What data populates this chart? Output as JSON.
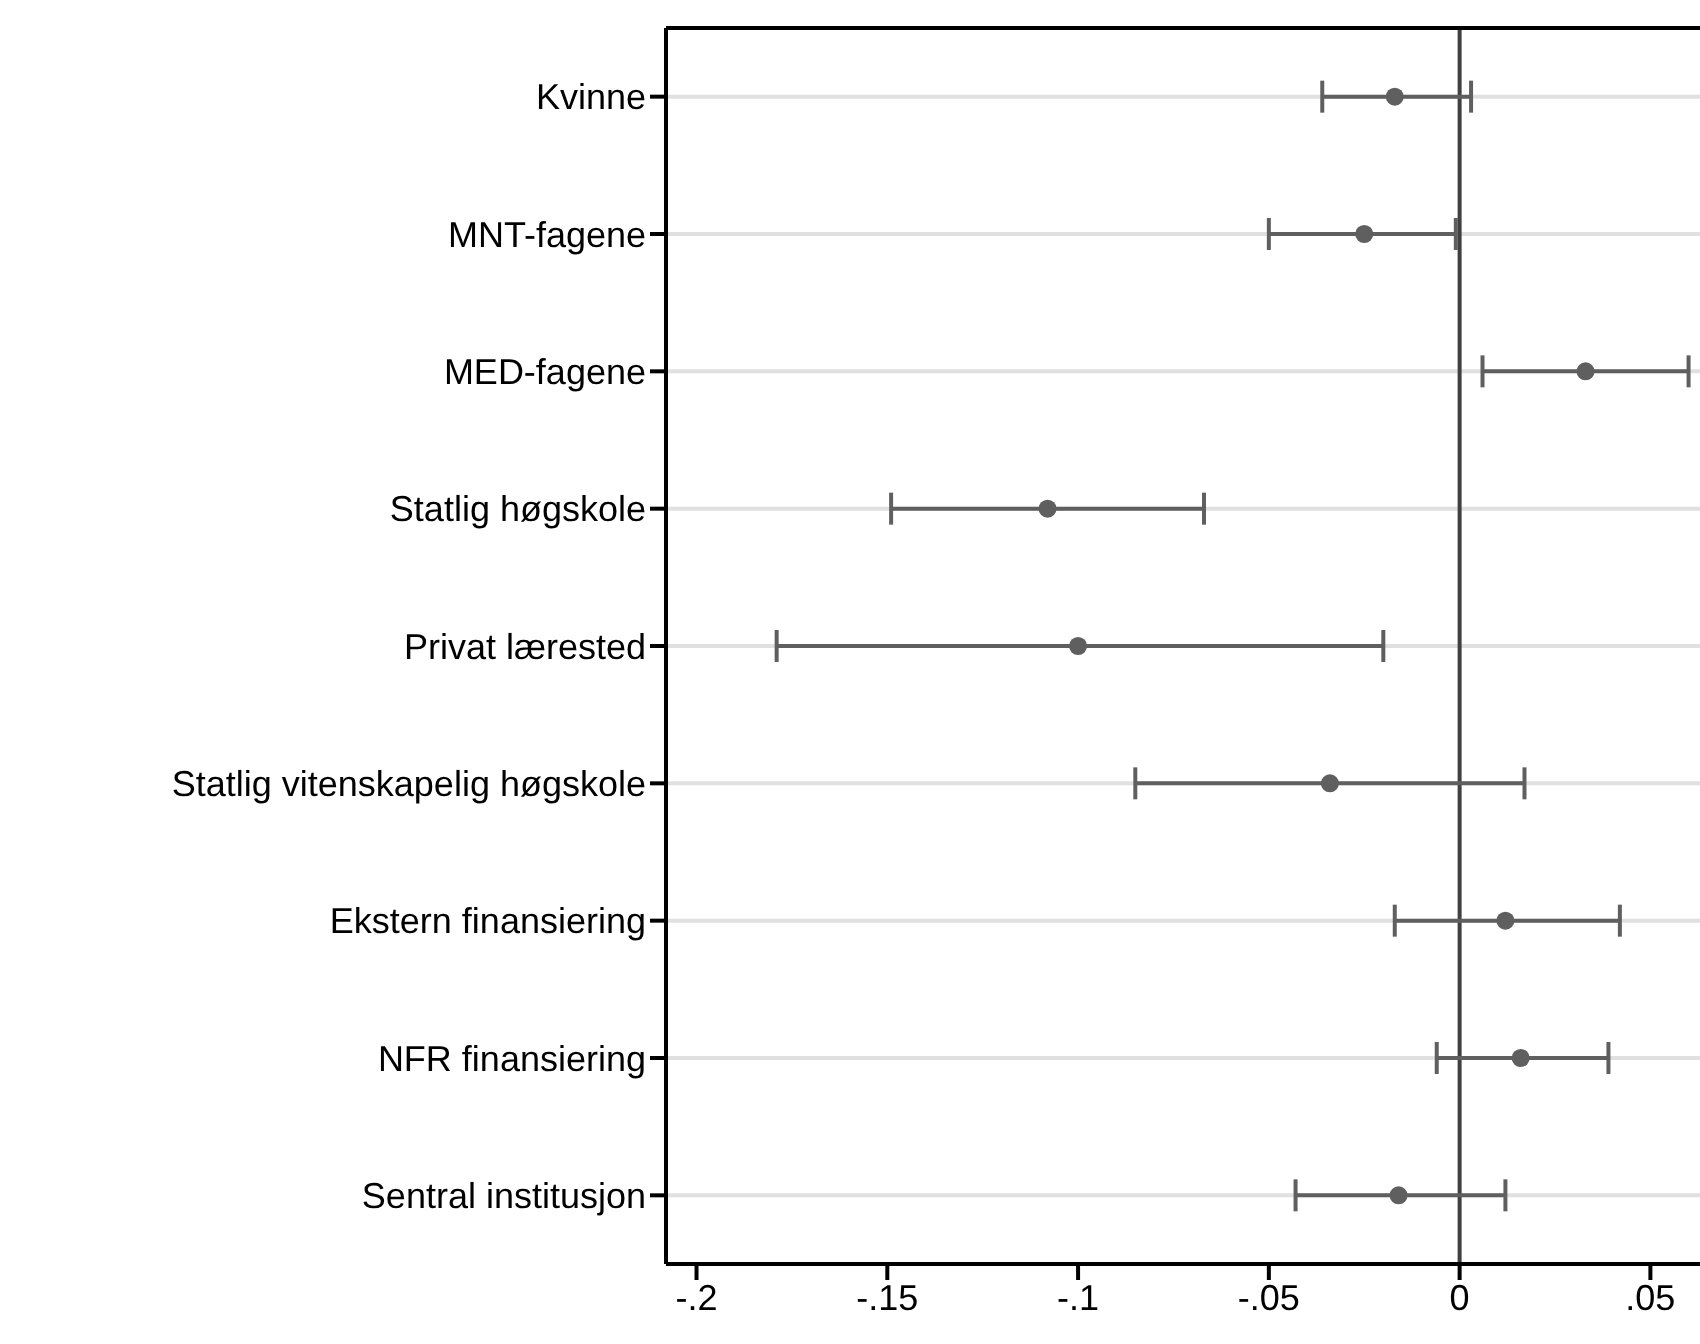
{
  "chart_data": {
    "type": "scatter",
    "orientation": "horizontal",
    "categories": [
      "Kvinne",
      "MNT-fagene",
      "MED-fagene",
      "Statlig høgskole",
      "Privat lærested",
      "Statlig vitenskapelig høgskole",
      "Ekstern finansiering",
      "NFR finansiering",
      "Sentral institusjon"
    ],
    "values": [
      -0.017,
      -0.025,
      0.033,
      -0.108,
      -0.1,
      -0.034,
      0.012,
      0.016,
      -0.016
    ],
    "errors": [
      [
        -0.036,
        0.003
      ],
      [
        -0.05,
        -0.001
      ],
      [
        0.006,
        0.06
      ],
      [
        -0.149,
        -0.067
      ],
      [
        -0.179,
        -0.02
      ],
      [
        -0.085,
        0.017
      ],
      [
        -0.017,
        0.042
      ],
      [
        -0.006,
        0.039
      ],
      [
        -0.043,
        0.012
      ]
    ],
    "color": "#5f5f5f",
    "marker": "circle",
    "grid": "y",
    "xlim": [
      -0.208,
      0.063
    ],
    "xticks": [
      {
        "value": -0.2,
        "label": "-.2"
      },
      {
        "value": -0.15,
        "label": "-.15"
      },
      {
        "value": -0.1,
        "label": "-.1"
      },
      {
        "value": -0.05,
        "label": "-.05"
      },
      0,
      {
        "value": 0.05,
        "label": ".05"
      }
    ],
    "ref_lines": [
      {
        "axis": "x",
        "value": 0,
        "color": "#404040"
      }
    ]
  }
}
